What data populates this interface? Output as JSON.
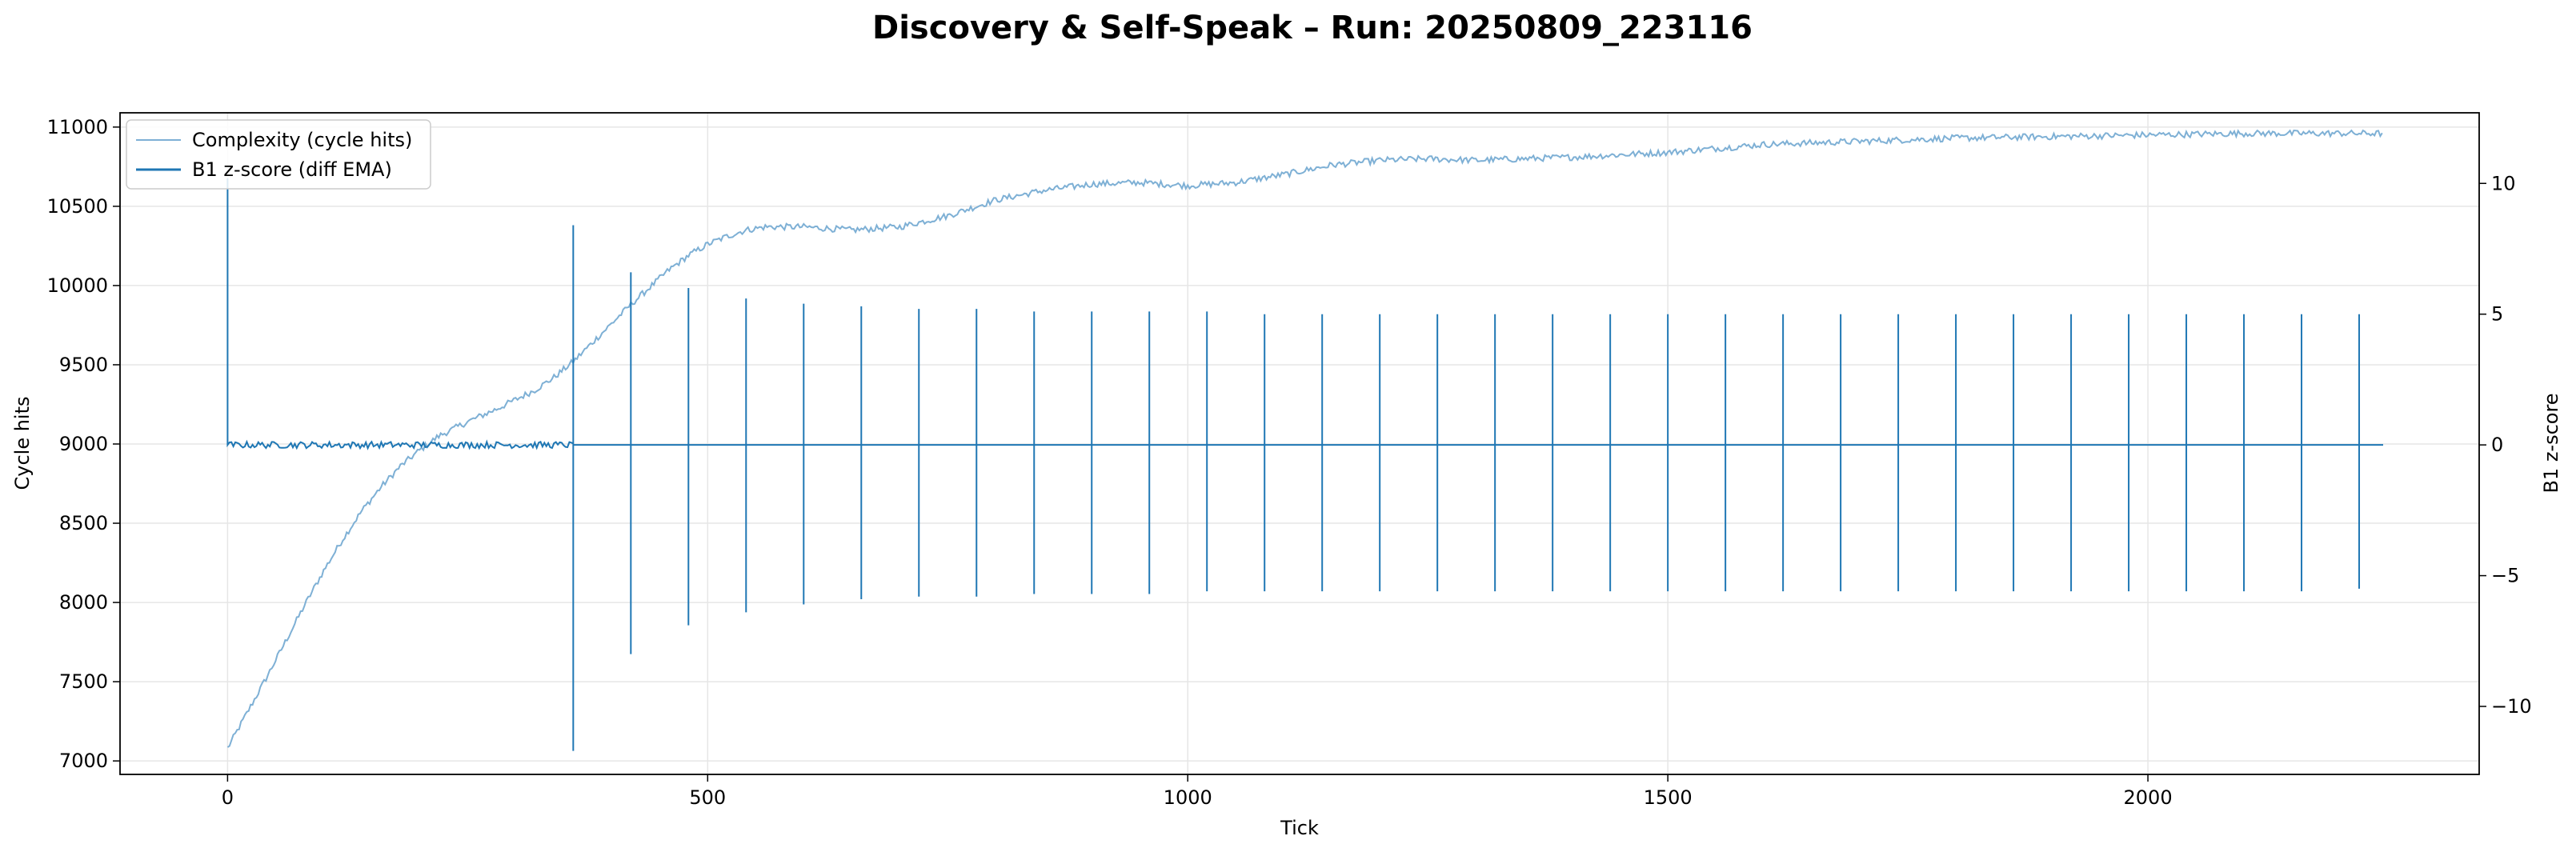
{
  "chart_data": {
    "type": "line",
    "title": "Discovery & Self-Speak – Run: 20250809_223116",
    "xlabel": "Tick",
    "ylabel_left": "Cycle hits",
    "ylabel_right": "B1 z-score",
    "xlim": [
      -112,
      2345
    ],
    "ylim_left": [
      6915,
      11090
    ],
    "ylim_right": [
      -12.6,
      12.7
    ],
    "x_ticks": [
      0,
      500,
      1000,
      1500,
      2000
    ],
    "y_ticks_left": [
      7000,
      7500,
      8000,
      8500,
      9000,
      9500,
      10000,
      10500,
      11000
    ],
    "y_ticks_right": [
      -10,
      -5,
      0,
      5,
      10
    ],
    "grid": true,
    "legend_position": "upper-left",
    "series": [
      {
        "name": "Complexity (cycle hits)",
        "axis": "left",
        "color": "#7eb0d5",
        "points": [
          [
            0,
            7080
          ],
          [
            20,
            7300
          ],
          [
            40,
            7520
          ],
          [
            60,
            7750
          ],
          [
            80,
            7980
          ],
          [
            100,
            8200
          ],
          [
            120,
            8400
          ],
          [
            140,
            8580
          ],
          [
            160,
            8730
          ],
          [
            180,
            8860
          ],
          [
            200,
            8960
          ],
          [
            220,
            9050
          ],
          [
            250,
            9140
          ],
          [
            280,
            9220
          ],
          [
            300,
            9280
          ],
          [
            320,
            9340
          ],
          [
            340,
            9420
          ],
          [
            360,
            9520
          ],
          [
            380,
            9640
          ],
          [
            400,
            9760
          ],
          [
            420,
            9880
          ],
          [
            440,
            9990
          ],
          [
            460,
            10100
          ],
          [
            480,
            10190
          ],
          [
            500,
            10260
          ],
          [
            520,
            10310
          ],
          [
            540,
            10350
          ],
          [
            560,
            10370
          ],
          [
            600,
            10370
          ],
          [
            650,
            10350
          ],
          [
            700,
            10370
          ],
          [
            750,
            10440
          ],
          [
            800,
            10540
          ],
          [
            850,
            10600
          ],
          [
            900,
            10640
          ],
          [
            950,
            10650
          ],
          [
            1000,
            10630
          ],
          [
            1050,
            10650
          ],
          [
            1100,
            10700
          ],
          [
            1150,
            10760
          ],
          [
            1200,
            10790
          ],
          [
            1250,
            10800
          ],
          [
            1300,
            10790
          ],
          [
            1350,
            10800
          ],
          [
            1400,
            10810
          ],
          [
            1500,
            10840
          ],
          [
            1600,
            10890
          ],
          [
            1700,
            10910
          ],
          [
            1800,
            10930
          ],
          [
            1900,
            10940
          ],
          [
            2000,
            10950
          ],
          [
            2100,
            10960
          ],
          [
            2200,
            10960
          ],
          [
            2245,
            10960
          ]
        ]
      },
      {
        "name": "B1 z-score (diff EMA)",
        "axis": "right",
        "color": "#1f77b4",
        "baseline": 0,
        "initial_spike": [
          0,
          10.2
        ],
        "spikes": [
          {
            "x": 360,
            "high": 8.4,
            "low": -11.7
          },
          {
            "x": 420,
            "high": 6.6,
            "low": -8.0
          },
          {
            "x": 480,
            "high": 6.0,
            "low": -6.9
          },
          {
            "x": 540,
            "high": 5.6,
            "low": -6.4
          },
          {
            "x": 600,
            "high": 5.4,
            "low": -6.1
          },
          {
            "x": 660,
            "high": 5.3,
            "low": -5.9
          },
          {
            "x": 720,
            "high": 5.2,
            "low": -5.8
          },
          {
            "x": 780,
            "high": 5.2,
            "low": -5.8
          },
          {
            "x": 840,
            "high": 5.1,
            "low": -5.7
          },
          {
            "x": 900,
            "high": 5.1,
            "low": -5.7
          },
          {
            "x": 960,
            "high": 5.1,
            "low": -5.7
          },
          {
            "x": 1020,
            "high": 5.1,
            "low": -5.6
          },
          {
            "x": 1080,
            "high": 5.0,
            "low": -5.6
          },
          {
            "x": 1140,
            "high": 5.0,
            "low": -5.6
          },
          {
            "x": 1200,
            "high": 5.0,
            "low": -5.6
          },
          {
            "x": 1260,
            "high": 5.0,
            "low": -5.6
          },
          {
            "x": 1320,
            "high": 5.0,
            "low": -5.6
          },
          {
            "x": 1380,
            "high": 5.0,
            "low": -5.6
          },
          {
            "x": 1440,
            "high": 5.0,
            "low": -5.6
          },
          {
            "x": 1500,
            "high": 5.0,
            "low": -5.6
          },
          {
            "x": 1560,
            "high": 5.0,
            "low": -5.6
          },
          {
            "x": 1620,
            "high": 5.0,
            "low": -5.6
          },
          {
            "x": 1680,
            "high": 5.0,
            "low": -5.6
          },
          {
            "x": 1740,
            "high": 5.0,
            "low": -5.6
          },
          {
            "x": 1800,
            "high": 5.0,
            "low": -5.6
          },
          {
            "x": 1860,
            "high": 5.0,
            "low": -5.6
          },
          {
            "x": 1920,
            "high": 5.0,
            "low": -5.6
          },
          {
            "x": 1980,
            "high": 5.0,
            "low": -5.6
          },
          {
            "x": 2040,
            "high": 5.0,
            "low": -5.6
          },
          {
            "x": 2100,
            "high": 5.0,
            "low": -5.6
          },
          {
            "x": 2160,
            "high": 5.0,
            "low": -5.6
          },
          {
            "x": 2220,
            "high": 5.0,
            "low": -5.5
          }
        ],
        "x_end": 2245
      }
    ]
  }
}
